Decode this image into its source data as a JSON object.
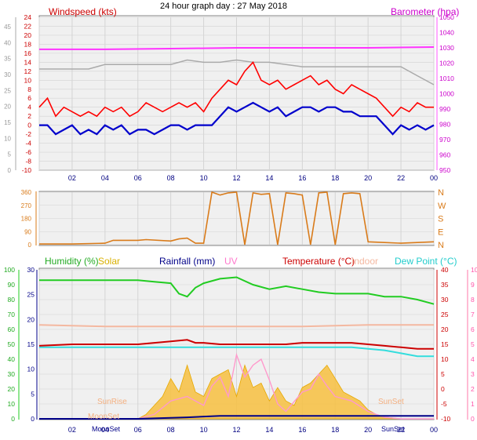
{
  "page_title": "24 hour graph day : 27 May 2018",
  "colors": {
    "wind_avg": "#0000cc",
    "wind_gust": "#ff0000",
    "baro": "#ff33ff",
    "wind_grey": "#aaaaaa",
    "direction": "#d97b1a",
    "humidity": "#22cc22",
    "solar": "#e6b800",
    "rainfall": "#000088",
    "uv": "#ff99cc",
    "temperature": "#cc0000",
    "indoor": "#f4b8a0",
    "dewpoint": "#33dddd",
    "panel_bg": "#f0f0f0",
    "grid": "#d4d4d4",
    "axis": "#888888"
  },
  "chart_data": [
    {
      "type": "line",
      "title": "",
      "left_axis_label": "Windspeed (kts)",
      "right_axis_label": "Barometer (hpa)",
      "x_ticks": [
        "02",
        "04",
        "06",
        "08",
        "10",
        "12",
        "14",
        "16",
        "18",
        "20",
        "22",
        "00"
      ],
      "left_inner_ticks": [
        "24",
        "22",
        "20",
        "18",
        "16",
        "14",
        "12",
        "10",
        "8",
        "6",
        "4",
        "2",
        "0",
        "-2",
        "-4",
        "-6",
        "-8",
        "-10"
      ],
      "left_outer_ticks": [
        "45",
        "40",
        "35",
        "30",
        "25",
        "20",
        "15",
        "10",
        "5",
        "0"
      ],
      "right_ticks": [
        "1050",
        "1040",
        "1030",
        "1020",
        "1010",
        "1000",
        "990",
        "980",
        "970",
        "960",
        "950"
      ],
      "ylim": [
        -10,
        24
      ],
      "baro_lim": [
        950,
        1050
      ],
      "series": [
        {
          "name": "Barometer (hpa)",
          "axis": "right",
          "x": [
            0,
            4,
            8,
            12,
            16,
            20,
            24
          ],
          "y": [
            1029,
            1029,
            1029.5,
            1030,
            1030,
            1030,
            1030.5
          ]
        },
        {
          "name": "",
          "axis": "left",
          "x": [
            0,
            2,
            3,
            4,
            8,
            9,
            10,
            11,
            12,
            13,
            14,
            15,
            16,
            17,
            18,
            19,
            20,
            21,
            22,
            23,
            24
          ],
          "y": [
            12.5,
            12.5,
            12.5,
            13.5,
            13.5,
            14.5,
            14,
            14,
            14.5,
            14,
            14,
            13.5,
            13,
            13,
            13,
            13,
            13,
            13,
            13,
            11,
            9
          ]
        },
        {
          "name": "",
          "axis": "left",
          "x": [
            0,
            0.5,
            1,
            1.5,
            2,
            2.5,
            3,
            3.5,
            4,
            4.5,
            5,
            5.5,
            6,
            6.5,
            7,
            7.5,
            8,
            8.5,
            9,
            9.5,
            10,
            10.5,
            11,
            11.5,
            12,
            12.5,
            13,
            13.5,
            14,
            14.5,
            15,
            15.5,
            16,
            16.5,
            17,
            17.5,
            18,
            18.5,
            19,
            19.5,
            20,
            20.5,
            21,
            21.5,
            22,
            22.5,
            23,
            23.5,
            24
          ],
          "y": [
            0,
            0,
            -2,
            -1,
            0,
            -2,
            -1,
            -2,
            0,
            -1,
            0,
            -2,
            -1,
            -1,
            -2,
            -1,
            0,
            0,
            -1,
            0,
            0,
            0,
            2,
            4,
            3,
            4,
            5,
            4,
            3,
            4,
            2,
            3,
            4,
            4,
            3,
            4,
            4,
            3,
            3,
            2,
            2,
            2,
            0,
            -2,
            0,
            -1,
            0,
            -1,
            0
          ]
        },
        {
          "name": "",
          "axis": "left",
          "x": [
            0,
            0.5,
            1,
            1.5,
            2,
            2.5,
            3,
            3.5,
            4,
            4.5,
            5,
            5.5,
            6,
            6.5,
            7,
            7.5,
            8,
            8.5,
            9,
            9.5,
            10,
            10.5,
            11,
            11.5,
            12,
            12.5,
            13,
            13.5,
            14,
            14.5,
            15,
            15.5,
            16,
            16.5,
            17,
            17.5,
            18,
            18.5,
            19,
            19.5,
            20,
            20.5,
            21,
            21.5,
            22,
            22.5,
            23,
            23.5,
            24
          ],
          "y": [
            4,
            6,
            2,
            4,
            3,
            2,
            3,
            2,
            4,
            3,
            4,
            2,
            3,
            5,
            4,
            3,
            4,
            5,
            4,
            5,
            3,
            6,
            8,
            10,
            9,
            12,
            14,
            10,
            9,
            10,
            8,
            9,
            10,
            11,
            9,
            10,
            8,
            7,
            9,
            8,
            7,
            6,
            4,
            2,
            4,
            3,
            5,
            4,
            4
          ]
        }
      ]
    },
    {
      "type": "line",
      "title": "",
      "x_ticks": [],
      "left_ticks": [
        "360",
        "270",
        "180",
        "90",
        "0"
      ],
      "right_ticks": [
        "N",
        "W",
        "S",
        "E",
        "N"
      ],
      "ylim": [
        0,
        360
      ],
      "series": [
        {
          "name": "",
          "axis": "left",
          "x": [
            0,
            2,
            4,
            4.5,
            6,
            6.5,
            8,
            8.5,
            9,
            9.5,
            10,
            10.5,
            11,
            11.5,
            12,
            12.5,
            13,
            13.5,
            14,
            14.5,
            15,
            15.5,
            16,
            16.5,
            17,
            17.5,
            18,
            18.5,
            19,
            19.5,
            20,
            21,
            22,
            23,
            24
          ],
          "y": [
            5,
            5,
            10,
            30,
            30,
            35,
            25,
            40,
            45,
            10,
            10,
            360,
            340,
            355,
            360,
            0,
            355,
            345,
            350,
            0,
            355,
            350,
            340,
            0,
            355,
            360,
            0,
            350,
            355,
            350,
            20,
            15,
            10,
            15,
            20
          ]
        }
      ]
    },
    {
      "type": "line",
      "title": "",
      "legend": [
        "Humidity (%)",
        "Solar",
        "Rainfall (mm)",
        "UV",
        "Temperature (°C)",
        "Indoor",
        "Dew Point (°C)"
      ],
      "x_ticks": [
        "02",
        "04",
        "06",
        "08",
        "10",
        "12",
        "14",
        "16",
        "18",
        "20",
        "22",
        "00"
      ],
      "sun_labels": [
        "SunRise",
        "MoonSet",
        "SunSet",
        "SunSet"
      ],
      "humidity_ticks": [
        "100",
        "90",
        "80",
        "70",
        "60",
        "50",
        "40",
        "30",
        "20",
        "10",
        "0"
      ],
      "rainfall_ticks": [
        "30",
        "25",
        "20",
        "15",
        "10",
        "5",
        "0"
      ],
      "temp_ticks": [
        "40",
        "35",
        "30",
        "25",
        "20",
        "15",
        "10",
        "5",
        "0",
        "-5",
        "-10"
      ],
      "uv_ticks": [
        "10",
        "9",
        "8",
        "7",
        "6",
        "5",
        "4",
        "3",
        "2",
        "1",
        "0"
      ],
      "temp_lim": [
        -10,
        40
      ],
      "humidity_lim": [
        0,
        100
      ],
      "series": [
        {
          "name": "Humidity (%)",
          "x": [
            0,
            2,
            4,
            6,
            7,
            8,
            8.5,
            9,
            9.5,
            10,
            11,
            12,
            13,
            14,
            15,
            16,
            17,
            18,
            19,
            20,
            21,
            22,
            23,
            24
          ],
          "y": [
            93,
            93,
            93,
            93,
            92,
            91,
            84,
            82,
            88,
            91,
            94,
            95,
            90,
            87,
            89,
            87,
            85,
            84,
            84,
            84,
            82,
            82,
            80,
            77
          ]
        },
        {
          "name": "Temperature (°C)",
          "x": [
            0,
            2,
            4,
            6,
            7,
            8,
            9,
            9.5,
            10,
            11,
            12,
            13,
            14,
            15,
            16,
            17,
            18,
            19,
            20,
            21,
            22,
            23,
            24
          ],
          "y": [
            14.5,
            15,
            15,
            15,
            15.5,
            16,
            16.5,
            15.5,
            15.5,
            15,
            15,
            15,
            15,
            15,
            15.5,
            15.5,
            15.5,
            15.5,
            15,
            14.5,
            14,
            13.5,
            13.5
          ]
        },
        {
          "name": "Dew Point (°C)",
          "x": [
            0,
            2,
            4,
            6,
            7,
            8,
            9,
            10,
            11,
            12,
            13,
            14,
            15,
            16,
            17,
            18,
            19,
            20,
            21,
            22,
            23,
            24
          ],
          "y": [
            14,
            14,
            14,
            14,
            14,
            14,
            14,
            14,
            14,
            14,
            14,
            14,
            14,
            14,
            14,
            14,
            14,
            13.5,
            13,
            12,
            11,
            11
          ]
        },
        {
          "name": "Indoor",
          "x": [
            0,
            4,
            8,
            12,
            16,
            20,
            24
          ],
          "y": [
            21.5,
            21,
            21,
            21,
            21,
            21.5,
            21.5
          ]
        },
        {
          "name": "Rainfall (mm)",
          "x": [
            0,
            6,
            9,
            11,
            12,
            24
          ],
          "y": [
            0,
            0,
            0.5,
            1,
            1,
            1
          ]
        },
        {
          "name": "UV",
          "x": [
            0,
            6,
            7,
            8,
            9,
            10,
            10.5,
            11,
            11.5,
            12,
            12.5,
            13,
            13.5,
            14,
            14.5,
            15,
            16,
            16.5,
            17,
            17.5,
            18,
            19,
            20,
            21,
            22,
            24
          ],
          "y": [
            0,
            0,
            0.3,
            1.2,
            1.5,
            0.9,
            2.2,
            2.8,
            1.5,
            4.3,
            2.8,
            3.6,
            4.0,
            2.6,
            1.0,
            0.5,
            1.8,
            2.0,
            3.0,
            2.2,
            1.5,
            1.2,
            0.5,
            0.1,
            0,
            0
          ]
        },
        {
          "name": "Solar",
          "x": [
            0,
            6,
            6.5,
            7,
            7.5,
            8,
            8.5,
            9,
            9.5,
            10,
            10.5,
            11,
            11.5,
            12,
            12.5,
            13,
            13.5,
            14,
            14.5,
            15,
            15.5,
            16,
            16.5,
            17,
            17.5,
            18,
            18.5,
            19,
            19.5,
            20,
            20.5,
            21,
            22,
            24
          ],
          "y": [
            0,
            0,
            0.5,
            1.5,
            2.5,
            4.5,
            3.0,
            6.0,
            3.0,
            2.5,
            4.5,
            5.0,
            5.5,
            2.5,
            6.0,
            3.5,
            4.0,
            2.0,
            3.5,
            2.0,
            1.5,
            3.5,
            4.0,
            5.0,
            6.0,
            4.5,
            3.0,
            2.5,
            2.0,
            1.0,
            0.5,
            0.2,
            0,
            0
          ]
        }
      ]
    }
  ]
}
